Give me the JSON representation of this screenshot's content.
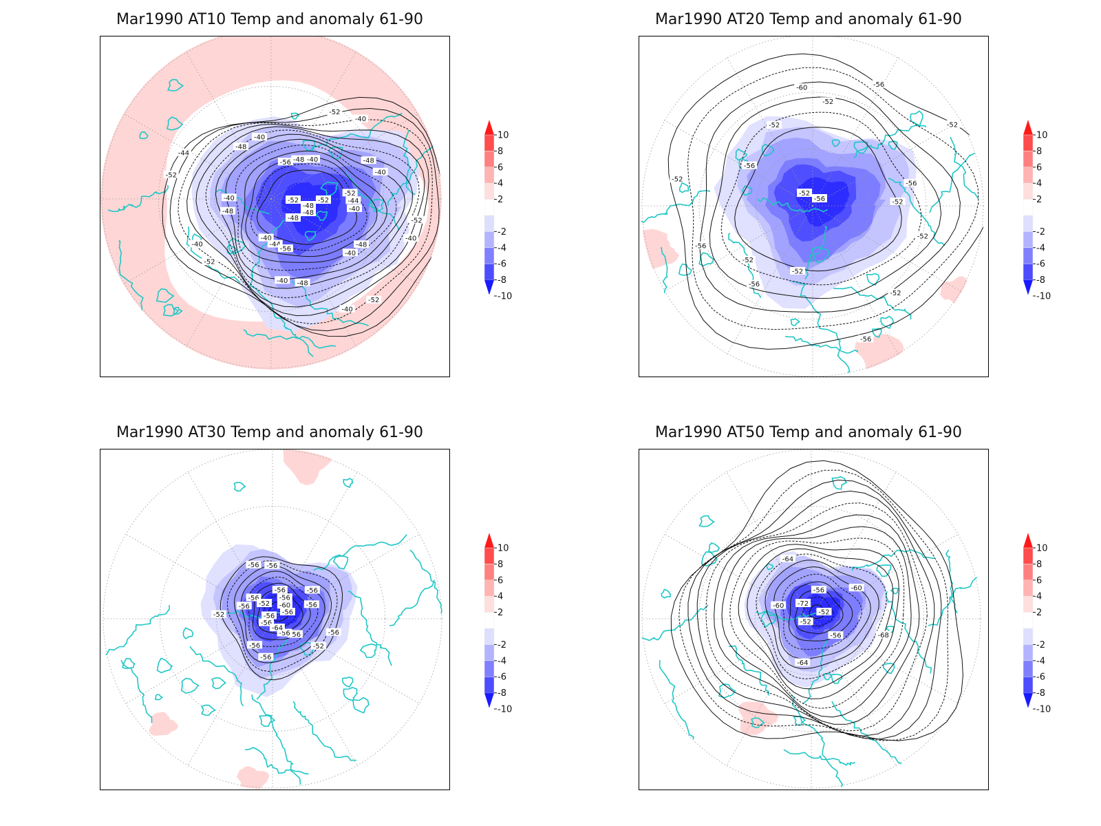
{
  "figure": {
    "panels": [
      {
        "id": "at10",
        "title": "Mar1990 AT10 Temp and anomaly 61-90",
        "contour_labels": [
          "-40",
          "-40",
          "-40",
          "-40",
          "-40",
          "-40",
          "-40",
          "-40",
          "-40",
          "-40",
          "-40",
          "-40",
          "-44",
          "-44",
          "-44",
          "-48",
          "-48",
          "-48",
          "-48",
          "-48",
          "-48",
          "-52",
          "-52",
          "-52",
          "-52",
          "-52",
          "-52",
          "-56",
          "-56"
        ],
        "highlight_labels": [
          "-52",
          "-48",
          "-52",
          "-48",
          "-48"
        ]
      },
      {
        "id": "at20",
        "title": "Mar1990 AT20 Temp and anomaly 61-90",
        "contour_labels": [
          "-52",
          "-52",
          "-52",
          "-52",
          "-52",
          "-52",
          "-52",
          "-52",
          "-52",
          "-56",
          "-56",
          "-56",
          "-56",
          "-56",
          "-56",
          "-60"
        ],
        "highlight_labels": [
          "-52",
          "-56"
        ]
      },
      {
        "id": "at30",
        "title": "Mar1990 AT30 Temp and anomaly 61-90",
        "contour_labels": [
          "-56",
          "-56",
          "-56",
          "-56",
          "-56",
          "-56",
          "-56",
          "-56",
          "-56",
          "-56",
          "-56",
          "-56",
          "-56",
          "-56",
          "-56",
          "-56",
          "-52",
          "-52",
          "-60",
          "-64"
        ],
        "highlight_labels": [
          "-52"
        ]
      },
      {
        "id": "at50",
        "title": "Mar1990 AT50 Temp and anomaly 61-90",
        "contour_labels": [
          "-52",
          "-52",
          "-56",
          "-56",
          "-60",
          "-60",
          "-64",
          "-64",
          "-68"
        ],
        "highlight_labels": [
          "-72"
        ]
      }
    ],
    "colorbar": {
      "labels": [
        "10",
        "8",
        "6",
        "4",
        "2",
        "-2",
        "-4",
        "-6",
        "-8",
        "-10"
      ],
      "colors": [
        "#ff1a1a",
        "#ff4d4d",
        "#ff8080",
        "#ffb3b3",
        "#ffdede",
        "#ffffff",
        "#dedeff",
        "#b3b3ff",
        "#8080ff",
        "#4d4dff",
        "#1a1aff"
      ]
    },
    "colors": {
      "coastline": "#1fc6c6",
      "warm_anomaly": "#ffd6d6",
      "cold_anomaly": "#6a6aff",
      "contour": "#111111"
    }
  }
}
